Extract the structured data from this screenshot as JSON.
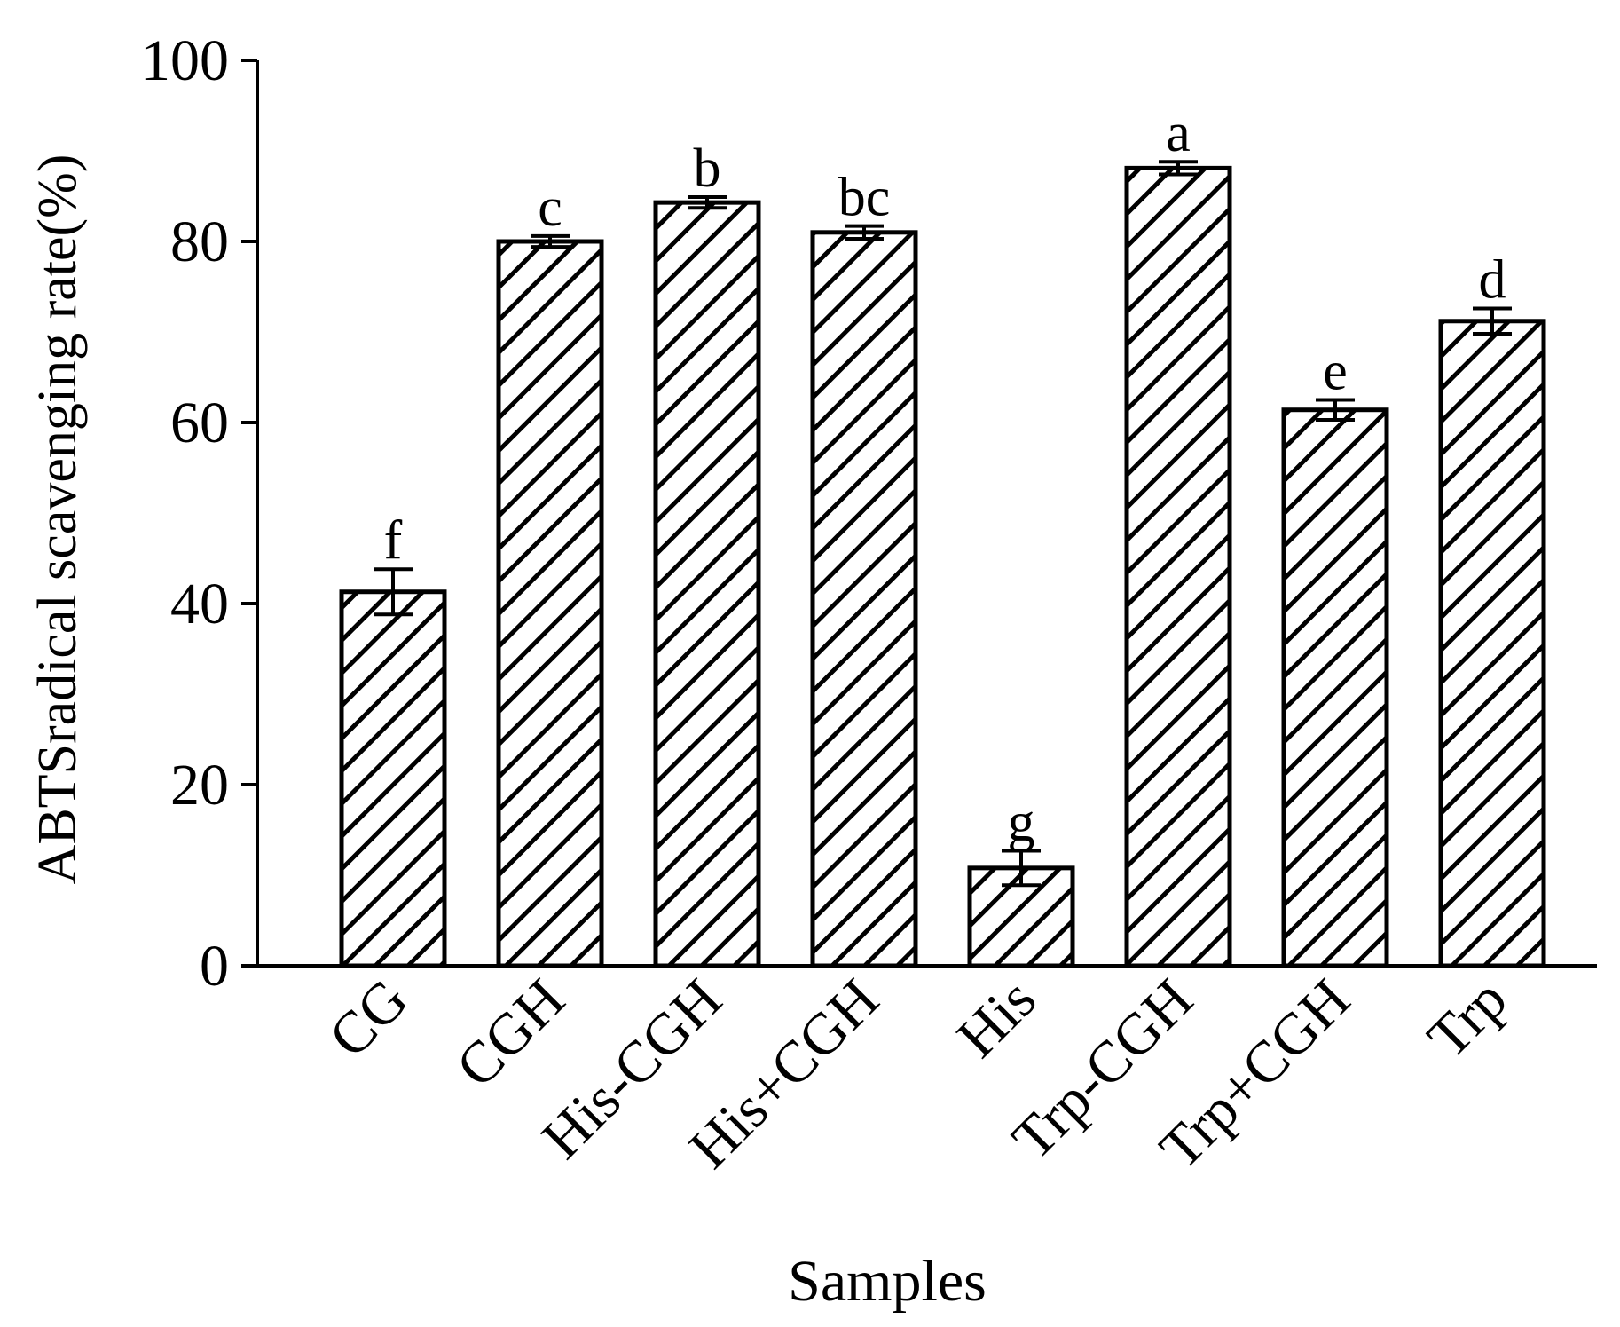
{
  "chart_data": {
    "type": "bar",
    "title": "",
    "xlabel": "Samples",
    "ylabel": "ABTSradical scavenging rate(%)",
    "ylim": [
      0,
      100
    ],
    "yticks": [
      0,
      20,
      40,
      60,
      80,
      100
    ],
    "ytick_labels": [
      "0",
      "20",
      "40",
      "60",
      "80",
      "100"
    ],
    "categories": [
      "CG",
      "CGH",
      "His-CGH",
      "His+CGH",
      "His",
      "Trp-CGH",
      "Trp+CGH",
      "Trp"
    ],
    "values": [
      41.3,
      80.0,
      84.3,
      81.0,
      10.8,
      88.1,
      61.4,
      71.2
    ],
    "errors": [
      2.5,
      0.6,
      0.6,
      0.7,
      1.9,
      0.7,
      1.1,
      1.4
    ],
    "significance_labels": [
      "f",
      "c",
      "b",
      "bc",
      "g",
      "a",
      "e",
      "d"
    ],
    "bar_fill": "hatched diagonal",
    "colors": {
      "stroke": "#000000",
      "background": "#ffffff"
    }
  }
}
